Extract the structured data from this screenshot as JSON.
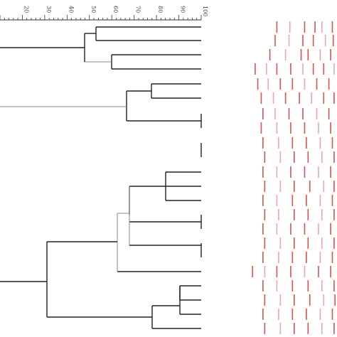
{
  "scale": {
    "min": 10,
    "max": 100,
    "tick_labels": [
      "20",
      "30",
      "40",
      "50",
      "60",
      "70",
      "80",
      "90",
      "100"
    ]
  },
  "colors": {
    "tree_dark": "#222222",
    "tree_light": "#888888",
    "band": "#d9534f",
    "band_light": "#f0a6a6"
  },
  "dendrogram": {
    "leaf_count": 22,
    "leaf_order": [
      "lane-1",
      "lane-2",
      "lane-3",
      "lane-4",
      "lane-5",
      "lane-6",
      "lane-7",
      "lane-8",
      "lane-9",
      "lane-10",
      "lane-11",
      "lane-12",
      "lane-13",
      "lane-14",
      "lane-15",
      "lane-16",
      "lane-17",
      "lane-18",
      "lane-19",
      "lane-20",
      "lane-21",
      "lane-22"
    ]
  },
  "lanes_note_hidden": "",
  "lanes": [
    {
      "bands": [
        0.3,
        0.45,
        0.62,
        0.74,
        0.82,
        0.94
      ]
    },
    {
      "bands": [
        0.28,
        0.44,
        0.6,
        0.72,
        0.86,
        0.95
      ]
    },
    {
      "bands": [
        0.22,
        0.4,
        0.58,
        0.66,
        0.8,
        0.92
      ]
    },
    {
      "bands": [
        0.05,
        0.18,
        0.3,
        0.46,
        0.6,
        0.72,
        0.84,
        0.96
      ]
    },
    {
      "bands": [
        0.08,
        0.2,
        0.34,
        0.48,
        0.62,
        0.76,
        0.9
      ]
    },
    {
      "bands": [
        0.12,
        0.26,
        0.4,
        0.56,
        0.7,
        0.84,
        0.96
      ]
    },
    {
      "bands": [
        0.14,
        0.28,
        0.44,
        0.6,
        0.76,
        0.9
      ]
    },
    {
      "bands": [
        0.12,
        0.3,
        0.46,
        0.62,
        0.78,
        0.92
      ]
    },
    {
      "bands": [
        0.14,
        0.32,
        0.48,
        0.64,
        0.8,
        0.94
      ]
    },
    {
      "bands": [
        0.16,
        0.34,
        0.5,
        0.66,
        0.82,
        0.96
      ]
    },
    {
      "bands": [
        0.14,
        0.3,
        0.46,
        0.62,
        0.78,
        0.92
      ]
    },
    {
      "bands": [
        0.16,
        0.34,
        0.5,
        0.68,
        0.84,
        0.96
      ]
    },
    {
      "bands": [
        0.14,
        0.3,
        0.48,
        0.64,
        0.8,
        0.94
      ]
    },
    {
      "bands": [
        0.16,
        0.32,
        0.5,
        0.66,
        0.82,
        0.96
      ]
    },
    {
      "bands": [
        0.14,
        0.3,
        0.46,
        0.62,
        0.78,
        0.92
      ]
    },
    {
      "bands": [
        0.16,
        0.34,
        0.5,
        0.66,
        0.82,
        0.96
      ]
    },
    {
      "bands": [
        0.14,
        0.32,
        0.48,
        0.64,
        0.8,
        0.94
      ]
    },
    {
      "bands": [
        0.02,
        0.16,
        0.3,
        0.46,
        0.62,
        0.78,
        0.92
      ]
    },
    {
      "bands": [
        0.14,
        0.3,
        0.48,
        0.66,
        0.82,
        0.96
      ]
    },
    {
      "bands": [
        0.16,
        0.34,
        0.5,
        0.68,
        0.84,
        0.97
      ]
    },
    {
      "bands": [
        0.14,
        0.32,
        0.48,
        0.64,
        0.8,
        0.94
      ]
    },
    {
      "bands": [
        0.16,
        0.34,
        0.5,
        0.66,
        0.82,
        0.96
      ]
    }
  ]
}
